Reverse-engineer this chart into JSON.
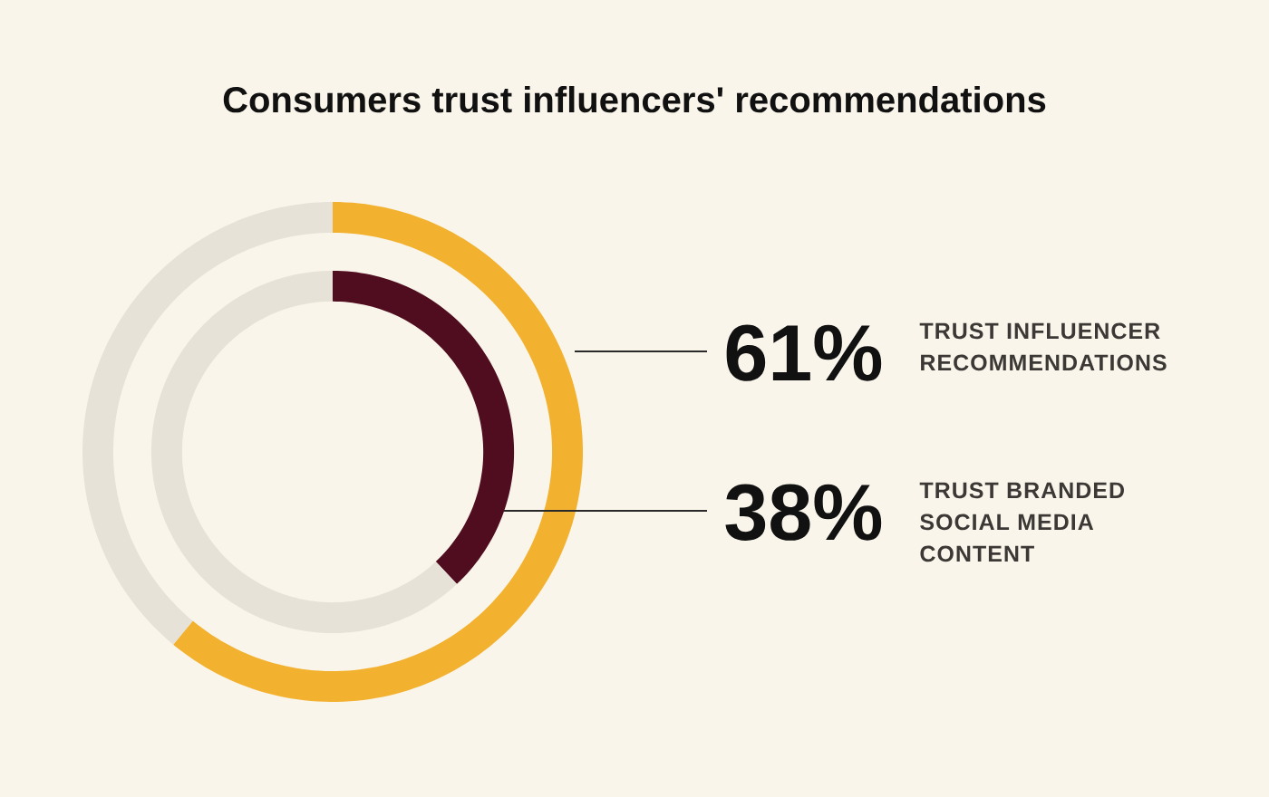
{
  "chart_data": {
    "type": "donut",
    "title": "Consumers trust influencers' recommendations",
    "categories": [
      null,
      null
    ],
    "series": [
      {
        "name": "TRUST INFLUENCER RECOMMENDATIONS",
        "values": [
          61,
          39
        ],
        "colors": [
          "#f2b12f",
          "#e7e2d7"
        ],
        "value_labels": [
          "61%",
          null
        ]
      },
      {
        "name": "TRUST BRANDED SOCIAL MEDIA CONTENT",
        "values": [
          38,
          62
        ],
        "colors": [
          "#4f0d1f",
          "#e7e2d7"
        ],
        "value_labels": [
          "38%",
          null
        ]
      }
    ]
  }
}
